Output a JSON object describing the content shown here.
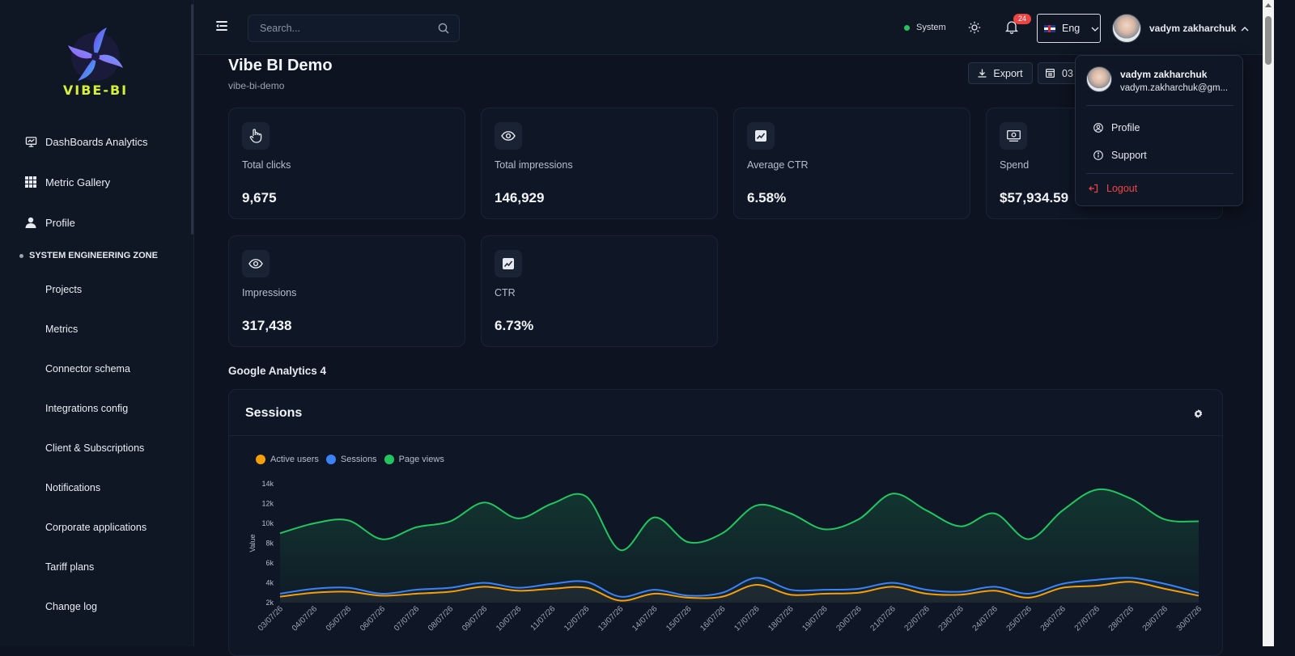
{
  "sidebar": {
    "logo_text": "VIBE-BI",
    "main_items": [
      {
        "label": "DashBoards Analytics",
        "icon": "presentation-chart-icon"
      },
      {
        "label": "Metric Gallery",
        "icon": "grid-icon"
      },
      {
        "label": "Profile",
        "icon": "user-icon"
      }
    ],
    "zone_title": "SYSTEM ENGINEERING ZONE",
    "sub_items": [
      "Projects",
      "Metrics",
      "Connector schema",
      "Integrations config",
      "Client & Subscriptions",
      "Notifications",
      "Corporate applications",
      "Tariff plans",
      "Change log"
    ]
  },
  "header": {
    "search_placeholder": "Search...",
    "system_label": "System",
    "notification_count": "24",
    "language": "Eng",
    "user_name": "vadym zakharchuk"
  },
  "page": {
    "title": "Vibe BI Demo",
    "slug": "vibe-bi-demo",
    "export_label": "Export",
    "date_label": "03"
  },
  "cards": [
    {
      "label": "Total clicks",
      "value": "9,675",
      "icon": "pointer-hand-icon"
    },
    {
      "label": "Total impressions",
      "value": "146,929",
      "icon": "eye-icon"
    },
    {
      "label": "Average CTR",
      "value": "6.58%",
      "icon": "trend-chart-icon"
    },
    {
      "label": "Spend",
      "value": "$57,934.59",
      "icon": "banknote-icon"
    },
    {
      "label": "Impressions",
      "value": "317,438",
      "icon": "eye-icon"
    },
    {
      "label": "CTR",
      "value": "6.73%",
      "icon": "trend-chart-icon"
    }
  ],
  "section_title": "Google Analytics 4",
  "user_menu": {
    "name": "vadym zakharchuk",
    "email": "vadym.zakharchuk@gm...",
    "items": [
      "Profile",
      "Support"
    ],
    "logout": "Logout"
  },
  "chart_data": {
    "type": "area",
    "title": "Sessions",
    "ylabel": "Value",
    "ylim": [
      2000,
      14000
    ],
    "yticks": [
      "2k",
      "4k",
      "6k",
      "8k",
      "10k",
      "12k",
      "14k"
    ],
    "x": [
      "03/07/26",
      "04/07/26",
      "05/07/26",
      "06/07/26",
      "07/07/26",
      "08/07/26",
      "09/07/26",
      "10/07/26",
      "11/07/26",
      "12/07/26",
      "13/07/26",
      "14/07/26",
      "15/07/26",
      "16/07/26",
      "17/07/26",
      "18/07/26",
      "19/07/26",
      "20/07/26",
      "21/07/26",
      "22/07/26",
      "23/07/26",
      "24/07/26",
      "25/07/26",
      "26/07/26",
      "27/07/26",
      "28/07/26",
      "29/07/26",
      "30/07/26"
    ],
    "series": [
      {
        "name": "Active users",
        "color": "#f59e0b",
        "values": [
          2600,
          3000,
          3100,
          2700,
          2900,
          3100,
          3600,
          3200,
          3400,
          3500,
          2200,
          2900,
          2500,
          2600,
          3800,
          2800,
          2900,
          3000,
          3600,
          2900,
          2800,
          3200,
          2500,
          3500,
          3700,
          4100,
          3400,
          2700
        ]
      },
      {
        "name": "Sessions",
        "color": "#3b82f6",
        "values": [
          2900,
          3400,
          3500,
          2900,
          3300,
          3500,
          4000,
          3500,
          3900,
          4100,
          2600,
          3300,
          2700,
          3000,
          4500,
          3300,
          3300,
          3400,
          4000,
          3300,
          3100,
          3600,
          2900,
          3900,
          4300,
          4500,
          3900,
          3000
        ]
      },
      {
        "name": "Page views",
        "color": "#22c55e",
        "values": [
          9000,
          10000,
          10300,
          8400,
          9600,
          10200,
          12100,
          10500,
          12000,
          12700,
          7300,
          10600,
          8100,
          9000,
          11800,
          11000,
          9400,
          10400,
          13000,
          11300,
          9700,
          11000,
          8400,
          11300,
          13400,
          12500,
          10400,
          10200
        ]
      }
    ]
  }
}
